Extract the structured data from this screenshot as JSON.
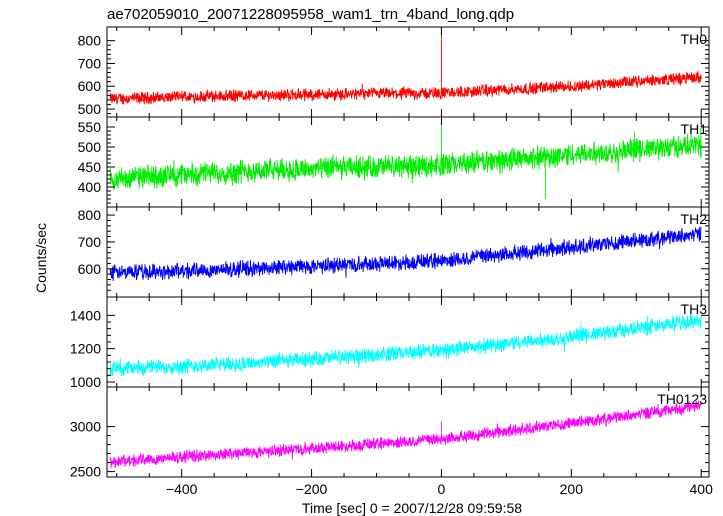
{
  "chart_data": {
    "type": "line",
    "title": "ae702059010_20071228095958_wam1_trn_4band_long.qdp",
    "xlabel": "Time [sec] 0 = 2007/12/28 09:59:58",
    "ylabel": "Counts/sec",
    "xlim": [
      -515,
      412
    ],
    "x_ticks": [
      -400,
      -200,
      0,
      200,
      400
    ],
    "grid": false,
    "panels": [
      {
        "name": "TH0",
        "color": "#ff0000",
        "ylim": [
          465,
          860
        ],
        "y_ticks": [
          500,
          600,
          700,
          800
        ],
        "trend": [
          [
            -510,
            545
          ],
          [
            -300,
            560
          ],
          [
            0,
            570
          ],
          [
            200,
            600
          ],
          [
            400,
            640
          ]
        ],
        "noise": 22,
        "spikes": [
          {
            "x": 0,
            "y": 860
          }
        ]
      },
      {
        "name": "TH1",
        "color": "#00ee00",
        "ylim": [
          350,
          575
        ],
        "y_ticks": [
          400,
          450,
          500,
          550
        ],
        "trend": [
          [
            -510,
            420
          ],
          [
            -300,
            440
          ],
          [
            0,
            455
          ],
          [
            200,
            480
          ],
          [
            400,
            505
          ]
        ],
        "noise": 24,
        "spikes": [
          {
            "x": 0,
            "y": 560
          },
          {
            "x": 160,
            "y": 370
          }
        ]
      },
      {
        "name": "TH2",
        "color": "#0000ff",
        "ylim": [
          495,
          830
        ],
        "y_ticks": [
          600,
          700,
          800
        ],
        "trend": [
          [
            -510,
            585
          ],
          [
            -300,
            600
          ],
          [
            0,
            630
          ],
          [
            200,
            680
          ],
          [
            400,
            730
          ]
        ],
        "noise": 24,
        "spikes": []
      },
      {
        "name": "TH3",
        "color": "#00ffff",
        "ylim": [
          970,
          1510
        ],
        "y_ticks": [
          1000,
          1200,
          1400
        ],
        "trend": [
          [
            -510,
            1080
          ],
          [
            -300,
            1110
          ],
          [
            0,
            1190
          ],
          [
            200,
            1270
          ],
          [
            400,
            1370
          ]
        ],
        "noise": 38,
        "spikes": []
      },
      {
        "name": "TH0123",
        "color": "#ff00ff",
        "ylim": [
          2440,
          3440
        ],
        "y_ticks": [
          2500,
          3000
        ],
        "trend": [
          [
            -510,
            2610
          ],
          [
            -300,
            2710
          ],
          [
            0,
            2860
          ],
          [
            200,
            3040
          ],
          [
            400,
            3230
          ]
        ],
        "noise": 55,
        "spikes": [
          {
            "x": 0,
            "y": 3060
          }
        ]
      }
    ]
  }
}
